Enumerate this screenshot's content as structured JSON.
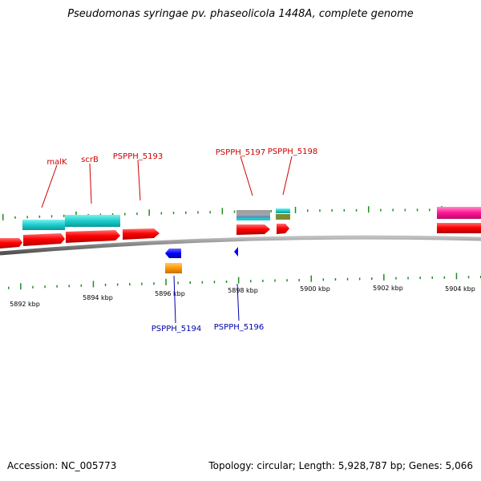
{
  "title": "Pseudomonas syringae pv. phaseolicola 1448A, complete genome",
  "footer": {
    "accession": "Accession: NC_005773",
    "stats": "Topology: circular; Length: 5,928,787 bp; Genes: 5,066"
  },
  "colors": {
    "backbone": "#808080",
    "forward_cds": "#ff0000",
    "reverse_cds": "#0000ff",
    "label_top": "#cc0000",
    "label_bottom": "#0000aa",
    "ticks": "#228B22",
    "feature_cyan": "#1ccccc",
    "feature_magenta": "#ff1493",
    "feature_orange": "#ff9900",
    "feature_olive": "#7a8c30",
    "feature_gray": "#a0a0a0"
  },
  "scale": {
    "labels": [
      "5892 kbp",
      "5894 kbp",
      "5896 kbp",
      "5898 kbp",
      "5900 kbp",
      "5902 kbp",
      "5904 kbp"
    ]
  },
  "genes_top": [
    {
      "name": "malK"
    },
    {
      "name": "scrB"
    },
    {
      "name": "PSPPH_5193"
    },
    {
      "name": "PSPPH_5197"
    },
    {
      "name": "PSPPH_5198"
    }
  ],
  "genes_bottom": [
    {
      "name": "PSPPH_5194"
    },
    {
      "name": "PSPPH_5196"
    }
  ]
}
